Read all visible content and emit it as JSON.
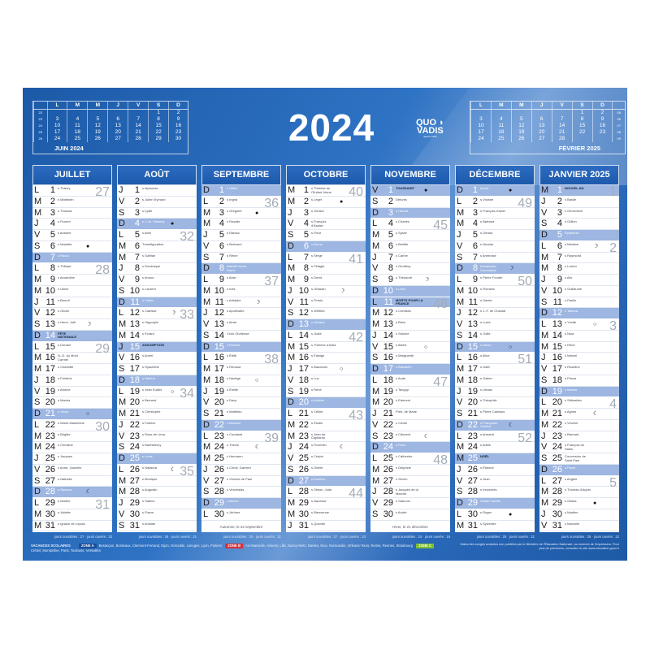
{
  "title": "2024",
  "brand": {
    "line1": "QUO",
    "line2": "VADIS",
    "tagline": "depuis 1952"
  },
  "colors": {
    "background": "#1f62b0",
    "highlight": "#9db6e2",
    "zone_a": "#1b4e9a",
    "zone_b": "#d9303a",
    "zone_c": "#7cbf2f"
  },
  "mini_calendars": [
    {
      "title": "JUIN 2024",
      "headers": [
        "L",
        "M",
        "M",
        "J",
        "V",
        "S",
        "D"
      ],
      "weeks": [
        "22",
        "23",
        "24",
        "25",
        "26"
      ],
      "rows": [
        [
          "",
          "",
          "",
          "",
          "",
          "1",
          "2"
        ],
        [
          "3",
          "4",
          "5",
          "6",
          "7",
          "8",
          "9"
        ],
        [
          "10",
          "11",
          "12",
          "13",
          "14",
          "15",
          "16"
        ],
        [
          "17",
          "18",
          "19",
          "20",
          "21",
          "22",
          "23"
        ],
        [
          "24",
          "25",
          "26",
          "27",
          "28",
          "29",
          "30"
        ]
      ]
    },
    {
      "title": "FÉVRIER 2025",
      "headers": [
        "L",
        "M",
        "M",
        "J",
        "V",
        "S",
        "D"
      ],
      "weeks": [
        "05",
        "06",
        "07",
        "08",
        "09"
      ],
      "rows": [
        [
          "",
          "",
          "",
          "",
          "",
          "1",
          "2"
        ],
        [
          "3",
          "4",
          "5",
          "6",
          "7",
          "8",
          "9"
        ],
        [
          "10",
          "11",
          "12",
          "13",
          "14",
          "15",
          "16"
        ],
        [
          "17",
          "18",
          "19",
          "20",
          "21",
          "22",
          "23"
        ],
        [
          "24",
          "25",
          "26",
          "27",
          "28",
          "",
          ""
        ]
      ]
    }
  ],
  "months": [
    {
      "name": "JUILLET",
      "letters": "LMMJVSDLMMJVSDLMMJVSDLMMJVSDLMM",
      "holidays": [
        14
      ],
      "saints": [
        "s Thierry",
        "s Martinien",
        "s Thomas",
        "s Florent",
        "s Antoine",
        "s Mariette",
        "s Raoul",
        "s Thibaut",
        "s Amandine",
        "s Ulrich",
        "s Benoît",
        "s Olivier",
        "s Henri, Joël",
        "FÊTE NATIONALE",
        "s Donald",
        "N.-D. du Mont Carmel",
        "s Charlotte",
        "s Frédéric",
        "s Arsène",
        "s Marina",
        "s Victor",
        "s Marie-Madeleine",
        "s Brigitte",
        "s Christine",
        "s Jacques",
        "s Anne, Joachim",
        "s Nathalie",
        "s Samson",
        "s Marthe",
        "s Juliette",
        "s Ignace de Loyola"
      ],
      "moons": {
        "6": "●",
        "13": "☽",
        "21": "○",
        "28": "☾"
      },
      "weeks": {
        "1": "27",
        "8": "28",
        "15": "29",
        "22": "30",
        "29": "31"
      },
      "footer": "jours ouvrables : 27 · jours ouvrés : 23"
    },
    {
      "name": "AOÛT",
      "letters": "JVSDLMMJVSDLMMJVSDLMMJVSDLMMJVS",
      "holidays": [
        15
      ],
      "saints": [
        "s Alphonse",
        "s Julien Eymard",
        "s Lydie",
        "s J.-M. Vianney",
        "s Abel",
        "Transfiguration",
        "s Gaëtan",
        "s Dominique",
        "s Amour",
        "s Laurent",
        "s Claire",
        "s Clarisse",
        "s Hippolyte",
        "s Evrard",
        "ASSOMPTION",
        "s Armel",
        "s Hyacinthe",
        "s Hélène",
        "s Jean Eudes",
        "s Bernard",
        "s Christophe",
        "s Fabrice",
        "s Rose de Lima",
        "s Barthélemy",
        "s Louis",
        "s Natacha",
        "s Monique",
        "s Augustin",
        "s Sabine",
        "s Fiacre",
        "s Aristide"
      ],
      "moons": {
        "4": "●",
        "12": "☽",
        "19": "○",
        "26": "☾"
      },
      "weeks": {
        "5": "32",
        "12": "33",
        "19": "34",
        "26": "35"
      },
      "footer": "jours ouvrables : 26 · jours ouvrés : 21"
    },
    {
      "name": "SEPTEMBRE",
      "letters": "DLMMJVSDLMMJVSDLMMJVSDLMMJVSDL",
      "holidays": [],
      "saints": [
        "s Gilles",
        "s Ingrid",
        "s Grégoire",
        "s Rosalie",
        "s Raïssa",
        "s Bertrand",
        "s Reine",
        "Nativité Notre-Dame",
        "s Alain",
        "s Inès",
        "s Adelphe",
        "s Apollinaire",
        "s Aimé",
        "Croix Glorieuse",
        "s Roland",
        "s Édith",
        "s Renaud",
        "s Nadège",
        "s Émilie",
        "s Davy",
        "s Matthieu",
        "s Maurice",
        "s Constant",
        "s Thècle",
        "s Hermann",
        "s Côme, Damien",
        "s Vincent de Paul",
        "s Venceslas",
        "s Michel",
        "s Jérôme"
      ],
      "moons": {
        "3": "●",
        "11": "☽",
        "18": "○",
        "24": "☾"
      },
      "weeks": {
        "2": "36",
        "9": "37",
        "16": "38",
        "23": "39"
      },
      "note": "Automne, le 22 septembre",
      "footer": "jours ouvrables : 25 · jours ouvrés : 21"
    },
    {
      "name": "OCTOBRE",
      "letters": "MMJVSDLMMJVSDLMMJVSDLMMJVSDLMMJ",
      "holidays": [],
      "saints": [
        "s Thérèse de l'Enfant Jésus",
        "s Léger",
        "s Gérard",
        "s François d'Assise",
        "s Fleur",
        "s Bruno",
        "s Serge",
        "s Pélagie",
        "s Denis",
        "s Ghislain",
        "s Firmin",
        "s Wilfried",
        "s Géraud",
        "s Juste",
        "s Thérèse d'Avila",
        "s Edwige",
        "s Baudouin",
        "s Luc",
        "s René",
        "s Adeline",
        "s Céline",
        "s Élodie",
        "s Jean de Capistran",
        "s Florentin",
        "s Crépin",
        "s Dimitri",
        "s Émeline",
        "s Simon, Jude",
        "s Narcisse",
        "s Bienvenue",
        "s Quentin"
      ],
      "moons": {
        "2": "●",
        "10": "☽",
        "17": "○",
        "24": "☾"
      },
      "weeks": {
        "1": "40",
        "7": "41",
        "14": "42",
        "21": "43",
        "28": "44"
      },
      "footer": "jours ouvrables : 27 · jours ouvrés : 23"
    },
    {
      "name": "NOVEMBRE",
      "letters": "VSDLMMJVSDLMMJVSDLMMJVSDLMMJVS",
      "holidays": [
        1,
        11
      ],
      "saints": [
        "TOUSSAINT",
        "Défunts",
        "s Hubert",
        "s Charles",
        "s Sylvie",
        "s Bertille",
        "s Carine",
        "s Geoffroy",
        "s Théodore",
        "s Léon",
        "MORTS POUR LA FRANCE",
        "s Christian",
        "s Brice",
        "s Sidoine",
        "s Albert",
        "s Marguerite",
        "s Élisabeth",
        "s Aude",
        "s Tanguy",
        "s Edmond",
        "Prés. de Marie",
        "s Cécile",
        "s Clément",
        "s Flora",
        "s Catherine",
        "s Delphine",
        "s Sévrin",
        "s Jacques de la Marche",
        "s Saturnin",
        "s André"
      ],
      "moons": {
        "1": "●",
        "9": "☽",
        "15": "○",
        "23": "☾"
      },
      "weeks": {
        "4": "45",
        "11": "46",
        "18": "47",
        "25": "48"
      },
      "note": "Hiver, le 21 décembre",
      "footer": "jours ouvrables : 24 · jours ouvrés : 19"
    },
    {
      "name": "DÉCEMBRE",
      "letters": "DLMMJVSDLMMJVSDLMMJVSDLMMJVSDLM",
      "holidays": [
        25
      ],
      "saints": [
        "Avent",
        "s Viviane",
        "s François-Xavier",
        "s Barbara",
        "s Gérald",
        "s Nicolas",
        "s Ambroise",
        "Immaculée Conception",
        "s Pierre Fourier",
        "s Romaric",
        "s Daniel",
        "s J.-F. de Chantal",
        "s Lucie",
        "s Odile",
        "s Ninon",
        "s Alice",
        "s Gaël",
        "s Gatien",
        "s Urbain",
        "s Théophile",
        "s Pierre Canisius",
        "s Françoise-Xavière",
        "s Armand",
        "s Adèle",
        "NOËL",
        "s Étienne",
        "s Jean",
        "s Innocents",
        "Sainte Famille",
        "s Roger",
        "s Sylvestre"
      ],
      "moons": {
        "1": "●",
        "8": "☽",
        "15": "○",
        "22": "☾",
        "30": "●"
      },
      "weeks": {
        "2": "49",
        "9": "50",
        "16": "51",
        "23": "52"
      },
      "footer": "jours ouvrables : 25 · jours ouvrés : 21"
    },
    {
      "name": "JANVIER 2025",
      "letters": "MJVSDLMMJVSDLMMJVSDLMMJVSDLMMJV",
      "holidays": [
        1
      ],
      "saints": [
        "NOUVEL AN",
        "s Basile",
        "s Geneviève",
        "s Odilon",
        "Épiphanie",
        "s Mélaine",
        "s Raymond",
        "s Lucien",
        "s Alix",
        "s Guillaume",
        "s Paulin",
        "s Tatiana",
        "s Yvette",
        "s Nina",
        "s Rémi",
        "s Marcel",
        "s Roseline",
        "s Prisca",
        "s Marius",
        "s Sébastien",
        "s Agnès",
        "s Vincent",
        "s Barnard",
        "s François de Sales",
        "Conversion de Saint Paul",
        "s Paule",
        "s Angèle",
        "s Thomas d'Aquin",
        "s Gildas",
        "s Martine",
        "s Marcelle"
      ],
      "moons": {
        "6": "☽",
        "13": "○",
        "21": "☾",
        "29": "●"
      },
      "weeks": {
        "1": "1",
        "6": "2",
        "13": "3",
        "20": "4",
        "27": "5"
      },
      "footer": "jours ouvrables : 26 · jours ouvrés : 22"
    }
  ],
  "vacances": {
    "label": "VACANCES SCOLAIRES",
    "zones": [
      {
        "name": "ZONE A",
        "cities": "Besançon, Bordeaux, Clermont-Ferrand, Dijon, Grenoble, Limoges, Lyon, Poitiers"
      },
      {
        "name": "ZONE B",
        "cities": "Aix-Marseille, Amiens, Lille, Nancy-Metz, Nantes, Nice, Normandie, Orléans-Tours, Reims, Rennes, Strasbourg"
      },
      {
        "name": "ZONE C",
        "cities": "Créteil, Montpellier, Paris, Toulouse, Versailles"
      }
    ],
    "disclaimer": "Dates des congés scolaires non publiées par le Ministère de l'Éducation Nationale, au moment de l'impression. Pour plus de précisions, consultez le site www.education.gouv.fr"
  }
}
